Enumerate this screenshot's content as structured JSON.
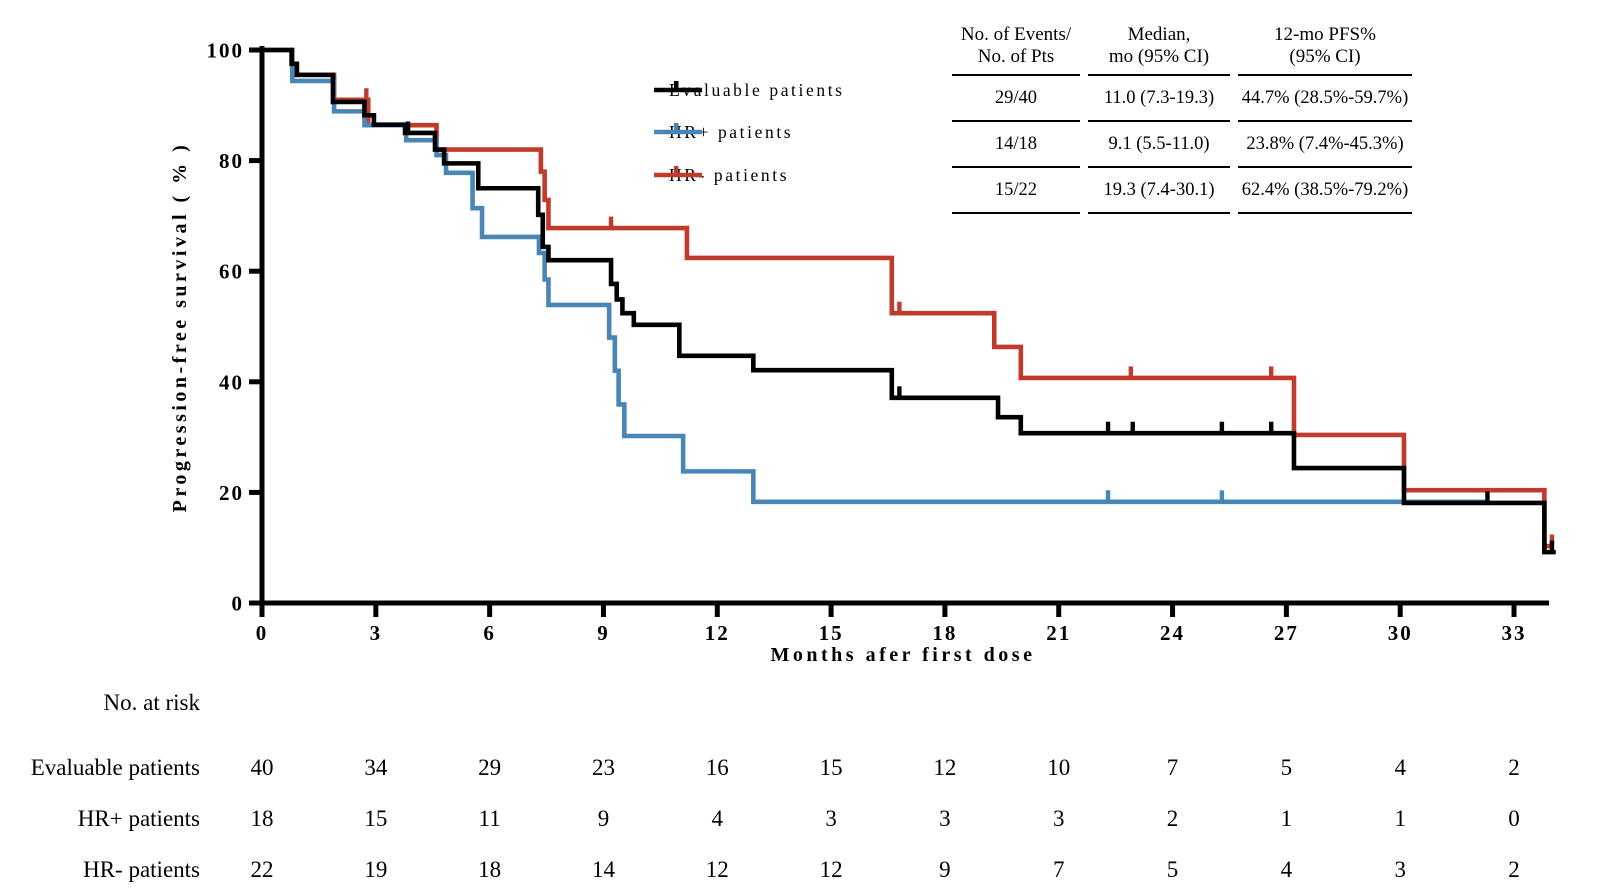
{
  "chart_data": {
    "type": "line",
    "subtype": "kaplan-meier-step",
    "title": "",
    "xlabel": "Months afer first dose",
    "ylabel": "Progression-free survival ( % )",
    "xlim": [
      0,
      34.2
    ],
    "ylim": [
      0,
      100
    ],
    "grid": false,
    "x_ticks": [
      0,
      3,
      6,
      9,
      12,
      15,
      18,
      21,
      24,
      27,
      30,
      33
    ],
    "y_ticks": [
      0,
      20,
      40,
      60,
      80,
      100
    ],
    "series": [
      {
        "name": "Evaluable patients",
        "color": "#000000",
        "end": 34.1,
        "steps": [
          [
            0,
            100
          ],
          [
            0.78,
            97.5
          ],
          [
            0.92,
            95.5
          ],
          [
            1.87,
            90.6
          ],
          [
            2.7,
            88.2
          ],
          [
            2.95,
            86.5
          ],
          [
            3.77,
            85.0
          ],
          [
            4.56,
            82.0
          ],
          [
            4.8,
            79.5
          ],
          [
            5.7,
            75.0
          ],
          [
            7.28,
            70.2
          ],
          [
            7.4,
            64.4
          ],
          [
            7.55,
            62.0
          ],
          [
            9.2,
            57.7
          ],
          [
            9.35,
            54.9
          ],
          [
            9.5,
            52.4
          ],
          [
            9.8,
            50.3
          ],
          [
            11.0,
            44.7
          ],
          [
            12.95,
            42.1
          ],
          [
            16.6,
            37.1
          ],
          [
            19.4,
            33.6
          ],
          [
            20.0,
            30.7
          ],
          [
            27.2,
            24.4
          ],
          [
            30.1,
            18.1
          ],
          [
            33.8,
            9.2
          ]
        ],
        "censors": [
          [
            3.85,
            85.0
          ],
          [
            16.8,
            37.1
          ],
          [
            22.3,
            30.7
          ],
          [
            22.95,
            30.7
          ],
          [
            25.3,
            30.7
          ],
          [
            26.6,
            30.7
          ],
          [
            32.3,
            18.1
          ],
          [
            34.0,
            9.2
          ]
        ]
      },
      {
        "name": "HR+ patients",
        "color": "#4A86B5",
        "end": 32.3,
        "steps": [
          [
            0,
            100
          ],
          [
            0.8,
            94.4
          ],
          [
            1.9,
            88.9
          ],
          [
            2.7,
            86.4
          ],
          [
            3.8,
            83.7
          ],
          [
            4.6,
            81.0
          ],
          [
            4.85,
            77.8
          ],
          [
            5.55,
            71.4
          ],
          [
            5.8,
            66.2
          ],
          [
            7.3,
            63.3
          ],
          [
            7.45,
            58.5
          ],
          [
            7.55,
            53.9
          ],
          [
            9.15,
            48.0
          ],
          [
            9.3,
            42.0
          ],
          [
            9.4,
            35.9
          ],
          [
            9.55,
            30.2
          ],
          [
            11.1,
            23.8
          ],
          [
            12.95,
            18.3
          ]
        ],
        "censors": [
          [
            22.3,
            18.3
          ],
          [
            25.3,
            18.3
          ]
        ]
      },
      {
        "name": "HR- patients",
        "color": "#C13B2D",
        "end": 34.05,
        "steps": [
          [
            0,
            100
          ],
          [
            0.8,
            95.5
          ],
          [
            1.9,
            91.0
          ],
          [
            2.8,
            86.4
          ],
          [
            4.6,
            82.0
          ],
          [
            7.35,
            78.0
          ],
          [
            7.45,
            72.9
          ],
          [
            7.55,
            67.8
          ],
          [
            11.2,
            62.4
          ],
          [
            16.6,
            52.4
          ],
          [
            19.3,
            46.3
          ],
          [
            20.0,
            40.7
          ],
          [
            27.2,
            30.4
          ],
          [
            30.1,
            20.4
          ],
          [
            33.8,
            10.3
          ]
        ],
        "censors": [
          [
            2.75,
            91.0
          ],
          [
            9.2,
            67.8
          ],
          [
            16.8,
            52.4
          ],
          [
            22.9,
            40.7
          ],
          [
            26.6,
            40.7
          ],
          [
            34.0,
            10.3
          ]
        ]
      }
    ]
  },
  "legend": {
    "items": [
      {
        "label": "Evaluable patients",
        "color": "#000000"
      },
      {
        "label": "HR+ patients",
        "color": "#4A86B5"
      },
      {
        "label": "HR- patients",
        "color": "#C13B2D"
      }
    ]
  },
  "summary_table": {
    "headers": [
      {
        "line1": "No. of Events/",
        "line2": "No. of Pts"
      },
      {
        "line1": "Median,",
        "line2": "mo (95% CI)"
      },
      {
        "line1": "12-mo PFS%",
        "line2": "(95% CI)"
      }
    ],
    "rows": [
      {
        "events": "29/40",
        "median": "11.0 (7.3-19.3)",
        "pfs": "44.7% (28.5%-59.7%)"
      },
      {
        "events": "14/18",
        "median": "9.1 (5.5-11.0)",
        "pfs": "23.8% (7.4%-45.3%)"
      },
      {
        "events": "15/22",
        "median": "19.3 (7.4-30.1)",
        "pfs": "62.4% (38.5%-79.2%)"
      }
    ]
  },
  "at_risk": {
    "title": "No. at risk",
    "rows": [
      {
        "label": "Evaluable patients",
        "values": [
          "40",
          "34",
          "29",
          "23",
          "16",
          "15",
          "12",
          "10",
          "7",
          "5",
          "4",
          "2"
        ]
      },
      {
        "label": "HR+ patients",
        "values": [
          "18",
          "15",
          "11",
          "9",
          "4",
          "3",
          "3",
          "3",
          "2",
          "1",
          "1",
          "0"
        ]
      },
      {
        "label": "HR- patients",
        "values": [
          "22",
          "19",
          "18",
          "14",
          "12",
          "12",
          "9",
          "7",
          "5",
          "4",
          "3",
          "2"
        ]
      }
    ]
  }
}
